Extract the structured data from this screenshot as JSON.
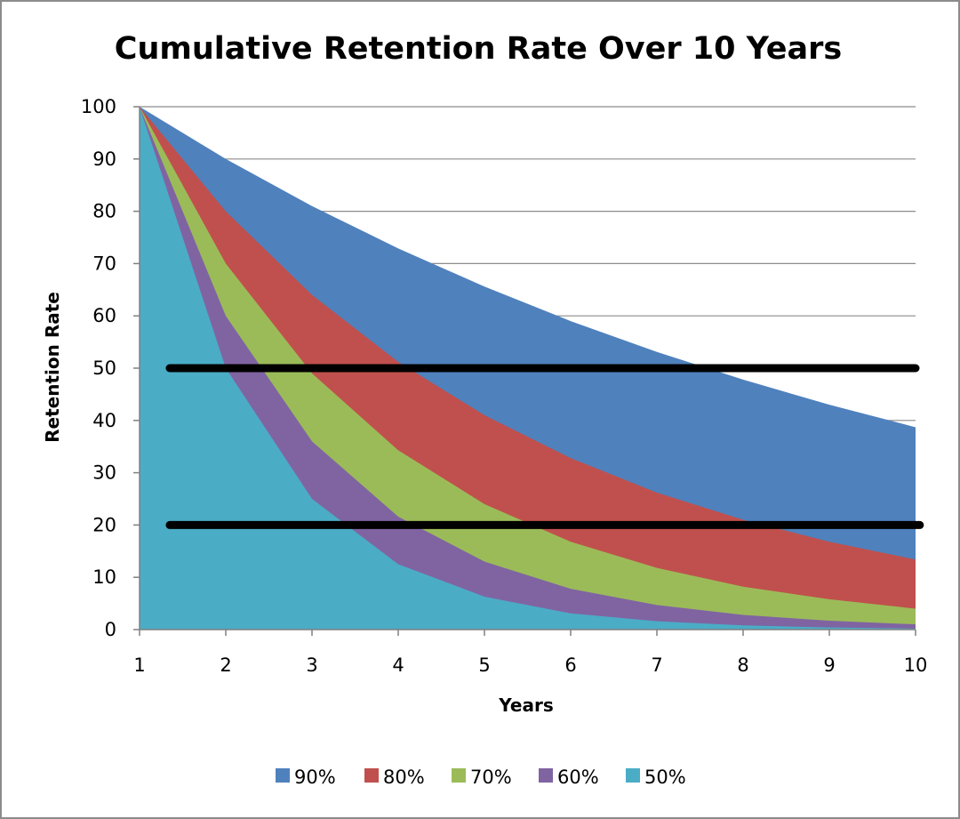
{
  "chart_data": {
    "type": "area",
    "title": "Cumulative Retention Rate Over 10 Years",
    "xlabel": "Years",
    "ylabel": "Retention Rate",
    "x": [
      1,
      2,
      3,
      4,
      5,
      6,
      7,
      8,
      9,
      10
    ],
    "xlim": [
      1,
      10
    ],
    "ylim": [
      0,
      100
    ],
    "yticks": [
      0,
      10,
      20,
      30,
      40,
      50,
      60,
      70,
      80,
      90,
      100
    ],
    "grid": true,
    "legend_position": "bottom",
    "series": [
      {
        "name": "90%",
        "color": "#4F81BD",
        "values": [
          100,
          90,
          81,
          72.9,
          65.6,
          59,
          53.1,
          47.8,
          43,
          38.7
        ]
      },
      {
        "name": "80%",
        "color": "#C0504D",
        "values": [
          100,
          80,
          64,
          51.2,
          41,
          32.8,
          26.2,
          21,
          16.8,
          13.4
        ]
      },
      {
        "name": "70%",
        "color": "#9BBB59",
        "values": [
          100,
          70,
          49,
          34.3,
          24,
          16.8,
          11.8,
          8.2,
          5.8,
          4
        ]
      },
      {
        "name": "60%",
        "color": "#8064A2",
        "values": [
          100,
          60,
          36,
          21.6,
          13,
          7.8,
          4.7,
          2.8,
          1.7,
          1
        ]
      },
      {
        "name": "50%",
        "color": "#4BACC6",
        "values": [
          100,
          50,
          25,
          12.5,
          6.3,
          3.1,
          1.6,
          0.8,
          0.4,
          0.2
        ]
      }
    ],
    "reference_lines": [
      {
        "y": 50,
        "x_start": 1.35,
        "x_end": 10,
        "color": "#000000"
      },
      {
        "y": 20,
        "x_start": 1.35,
        "x_end": 10.05,
        "color": "#000000"
      }
    ]
  }
}
